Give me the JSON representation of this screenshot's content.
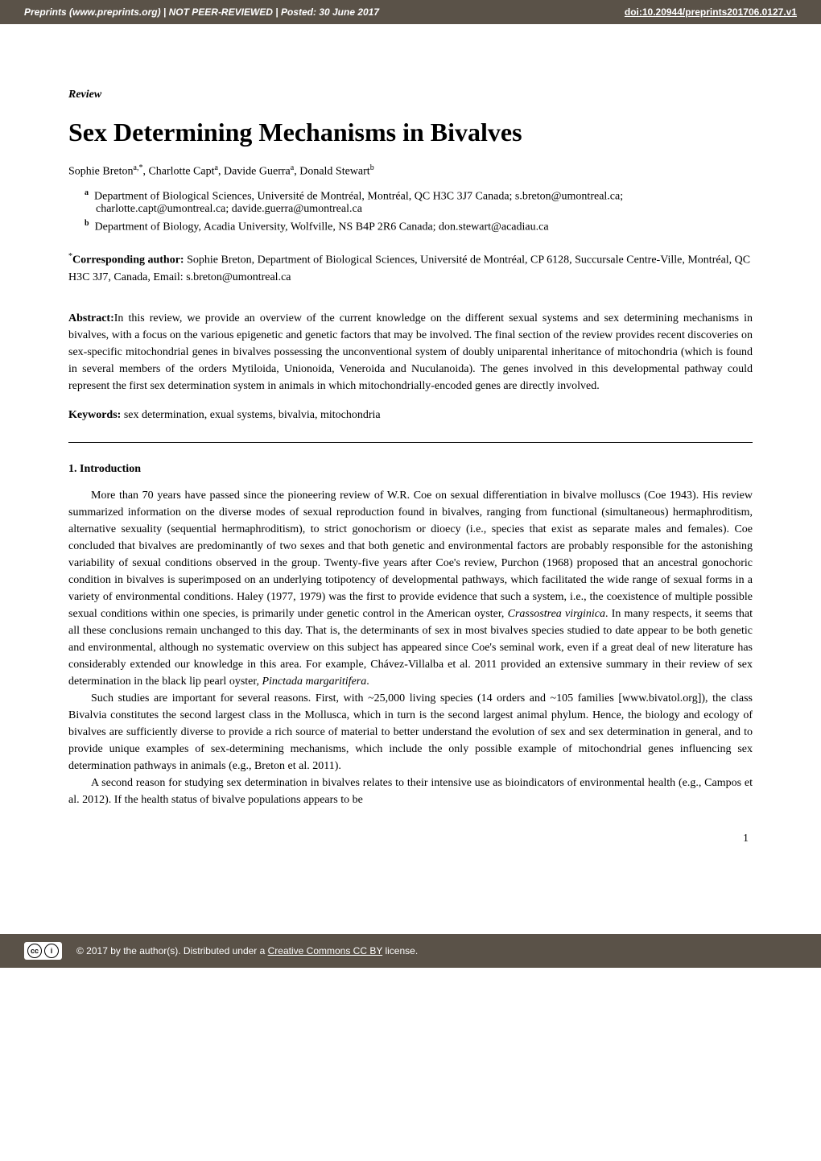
{
  "header": {
    "left": "Preprints (www.preprints.org)  |  NOT PEER-REVIEWED  |  Posted: 30 June 2017",
    "doi": "doi:10.20944/preprints201706.0127.v1"
  },
  "article_type": "Review",
  "title": "Sex Determining Mechanisms in Bivalves",
  "authors_line": "Sophie Breton",
  "authors_rest": ", Charlotte Capt",
  "author3": ", Davide Guerra",
  "author4": ", Donald Stewart",
  "sup_a_star": "a,*",
  "sup_a": "a",
  "sup_b": "b",
  "affiliations": [
    {
      "marker": "a",
      "text": "Department of Biological Sciences, Université de Montréal, Montréal, QC H3C 3J7 Canada; s.breton@umontreal.ca; charlotte.capt@umontreal.ca; davide.guerra@umontreal.ca"
    },
    {
      "marker": "b",
      "text": "Department of Biology, Acadia University, Wolfville, NS B4P 2R6 Canada; don.stewart@acadiau.ca"
    }
  ],
  "corresponding": {
    "label": "Corresponding author:",
    "text": " Sophie Breton, Department of Biological Sciences, Université de Montréal, CP 6128, Succursale Centre-Ville, Montréal, QC H3C 3J7, Canada, Email: s.breton@umontreal.ca"
  },
  "abstract": {
    "label": "Abstract:",
    "text": "In this review, we provide an overview of the current knowledge on the different sexual systems and sex determining mechanisms in bivalves, with a focus on the various epigenetic and genetic factors that may be involved. The final section of the review provides recent discoveries on sex-specific mitochondrial genes in bivalves possessing the unconventional system of doubly uniparental inheritance of mitochondria (which is found in several members of the orders Mytiloida, Unionoida, Veneroida and Nuculanoida). The genes involved in this developmental pathway could represent the first sex determination system in animals in which mitochondrially-encoded genes are directly involved."
  },
  "keywords": {
    "label": "Keywords: ",
    "text": "sex determination, exual systems, bivalvia, mitochondria"
  },
  "section_heading": "1. Introduction",
  "para1_a": "More than 70 years have passed since the pioneering review of W.R. Coe on sexual differentiation in bivalve molluscs (Coe 1943). His review summarized information on the diverse modes of sexual reproduction found in bivalves, ranging from functional (simultaneous) hermaphroditism, alternative sexuality (sequential hermaphroditism), to strict gonochorism or dioecy (i.e., species that exist as separate males and females). Coe concluded that bivalves are predominantly of two sexes and that both genetic and environmental factors are probably responsible for the astonishing variability of sexual conditions observed in the group. Twenty-five years after Coe's review, Purchon (1968) proposed that an ancestral gonochoric condition in bivalves is superimposed on an underlying totipotency of developmental pathways, which facilitated the wide range of sexual forms in a variety of environmental conditions. Haley (1977, 1979) was the first to provide evidence that such a system, i.e., the coexistence of multiple possible sexual conditions within one species, is primarily under genetic control in the American oyster, ",
  "para1_italic1": "Crassostrea virginica",
  "para1_b": ". In many respects, it seems that all these conclusions remain unchanged to this day. That is, the determinants of sex in most bivalves species studied to date appear to be both genetic and environmental, although no systematic overview on this subject has appeared since Coe's seminal work, even if a great deal of new literature has considerably extended our knowledge in this area. For example, Chávez-Villalba et al. 2011 provided an extensive summary in their review of sex determination in the black lip pearl oyster, ",
  "para1_italic2": "Pinctada margaritifera",
  "para1_c": ".",
  "para2": "Such studies are important for several reasons. First, with ~25,000 living species (14 orders and ~105 families [www.bivatol.org]), the class Bivalvia constitutes the second largest class in the Mollusca, which in turn is the second largest animal phylum. Hence, the biology and ecology of bivalves are sufficiently diverse to provide a rich source of material to better understand the evolution of sex and sex determination in general, and to provide unique examples of sex-determining mechanisms, which include the only possible example of mitochondrial genes influencing sex determination pathways in animals (e.g., Breton et al. 2011).",
  "para3": "A second reason for studying sex determination in bivalves relates to their intensive use as bioindicators of environmental health (e.g., Campos et al. 2012). If the health status of bivalve populations appears to be",
  "page_number": "1",
  "footer": {
    "cc": "cc",
    "by": "i",
    "text_prefix": "© 2017 by the author(s). Distributed under a ",
    "license_link": "Creative Commons CC BY",
    "text_suffix": " license."
  },
  "colors": {
    "header_bg": "#5a5248",
    "header_text": "#ffffff",
    "body_bg": "#ffffff",
    "body_text": "#000000"
  }
}
